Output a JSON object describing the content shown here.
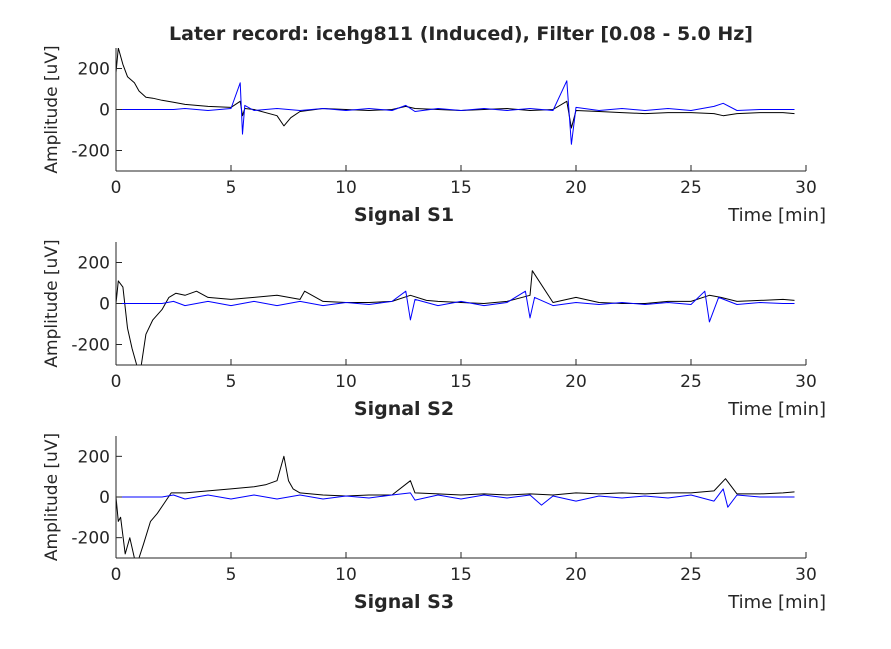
{
  "figure": {
    "title": "Later record: icehg811 (Induced), Filter [0.08 - 5.0 Hz]"
  },
  "colors": {
    "raw_signal": "#000000",
    "filtered_signal": "#0000ff",
    "axes": "#262626"
  },
  "chart_data": [
    {
      "type": "line",
      "subplot": "S1",
      "xlabel": "Signal S1",
      "xunit_label": "Time [min]",
      "ylabel": "Amplitude [uV]",
      "xlim": [
        0,
        30
      ],
      "ylim": [
        -300,
        300
      ],
      "xticks": [
        0,
        5,
        10,
        15,
        20,
        25,
        30
      ],
      "yticks": [
        -200,
        0,
        200
      ],
      "grid": false,
      "series": [
        {
          "color": "#000000",
          "x": [
            0,
            0.1,
            0.3,
            0.5,
            0.8,
            1.0,
            1.3,
            1.6,
            2.0,
            2.5,
            3.0,
            4.0,
            5.0,
            5.4,
            5.5,
            5.6,
            6.0,
            7.0,
            7.3,
            7.6,
            8.0,
            9.0,
            10.0,
            11.0,
            12.0,
            12.6,
            13.0,
            14.0,
            15.0,
            16.0,
            17.0,
            18.0,
            19.0,
            19.6,
            19.8,
            20.0,
            21.0,
            22.0,
            23.0,
            24.0,
            25.0,
            26.0,
            26.4,
            27.0,
            28.0,
            29.0,
            29.5
          ],
          "y": [
            180,
            300,
            220,
            160,
            130,
            90,
            60,
            55,
            45,
            35,
            25,
            15,
            10,
            40,
            -30,
            5,
            0,
            -30,
            -80,
            -40,
            -10,
            5,
            0,
            -5,
            0,
            15,
            5,
            0,
            -5,
            0,
            5,
            -5,
            0,
            40,
            -90,
            -5,
            -10,
            -15,
            -20,
            -15,
            -15,
            -20,
            -30,
            -20,
            -15,
            -15,
            -20
          ]
        },
        {
          "color": "#0000ff",
          "x": [
            0,
            2.5,
            3.0,
            4.0,
            5.0,
            5.4,
            5.5,
            5.6,
            6.0,
            7.0,
            8.0,
            9.0,
            10.0,
            11.0,
            12.0,
            12.6,
            13.0,
            14.0,
            15.0,
            16.0,
            17.0,
            18.0,
            19.0,
            19.6,
            19.8,
            20.0,
            21.0,
            22.0,
            23.0,
            24.0,
            25.0,
            26.0,
            26.4,
            27.0,
            28.0,
            29.0,
            29.5
          ],
          "y": [
            0,
            0,
            5,
            -5,
            5,
            130,
            -120,
            20,
            -5,
            5,
            -5,
            5,
            -5,
            5,
            -5,
            20,
            -10,
            5,
            -5,
            5,
            -5,
            5,
            -5,
            140,
            -170,
            10,
            -5,
            5,
            -5,
            5,
            -5,
            15,
            30,
            -5,
            0,
            0,
            0
          ]
        }
      ]
    },
    {
      "type": "line",
      "subplot": "S2",
      "xlabel": "Signal S2",
      "xunit_label": "Time [min]",
      "ylabel": "Amplitude [uV]",
      "xlim": [
        0,
        30
      ],
      "ylim": [
        -300,
        300
      ],
      "xticks": [
        0,
        5,
        10,
        15,
        20,
        25,
        30
      ],
      "yticks": [
        -200,
        0,
        200
      ],
      "grid": false,
      "series": [
        {
          "color": "#000000",
          "x": [
            0,
            0.1,
            0.3,
            0.5,
            0.7,
            0.9,
            1.1,
            1.3,
            1.6,
            2.0,
            2.3,
            2.6,
            3.0,
            3.5,
            4.0,
            5.0,
            6.0,
            7.0,
            8.0,
            8.2,
            9.0,
            10.0,
            11.0,
            12.0,
            12.8,
            13.5,
            14.0,
            15.0,
            16.0,
            17.0,
            18.0,
            18.1,
            19.0,
            20.0,
            21.0,
            22.0,
            23.0,
            24.0,
            25.0,
            25.8,
            26.3,
            27.0,
            28.0,
            29.0,
            29.5
          ],
          "y": [
            0,
            110,
            80,
            -120,
            -220,
            -300,
            -300,
            -150,
            -80,
            -30,
            30,
            50,
            40,
            60,
            30,
            20,
            30,
            40,
            20,
            60,
            10,
            5,
            5,
            10,
            40,
            15,
            10,
            5,
            0,
            10,
            40,
            160,
            5,
            30,
            5,
            0,
            0,
            10,
            10,
            40,
            30,
            10,
            15,
            20,
            15
          ]
        },
        {
          "color": "#0000ff",
          "x": [
            0,
            2.0,
            2.5,
            3.0,
            4.0,
            5.0,
            6.0,
            7.0,
            8.0,
            9.0,
            10.0,
            11.0,
            12.0,
            12.6,
            12.8,
            13.0,
            14.0,
            15.0,
            16.0,
            17.0,
            17.8,
            18.0,
            18.2,
            19.0,
            20.0,
            21.0,
            22.0,
            23.0,
            24.0,
            25.0,
            25.6,
            25.8,
            26.2,
            27.0,
            28.0,
            29.0,
            29.5
          ],
          "y": [
            0,
            0,
            10,
            -10,
            10,
            -10,
            10,
            -10,
            10,
            -10,
            5,
            -5,
            10,
            60,
            -80,
            20,
            -10,
            10,
            -10,
            5,
            60,
            -70,
            30,
            -10,
            5,
            -5,
            5,
            -5,
            5,
            -5,
            60,
            -90,
            30,
            -5,
            5,
            0,
            0
          ]
        }
      ]
    },
    {
      "type": "line",
      "subplot": "S3",
      "xlabel": "Signal S3",
      "xunit_label": "Time [min]",
      "ylabel": "Amplitude [uV]",
      "xlim": [
        0,
        30
      ],
      "ylim": [
        -300,
        300
      ],
      "xticks": [
        0,
        5,
        10,
        15,
        20,
        25,
        30
      ],
      "yticks": [
        -200,
        0,
        200
      ],
      "grid": false,
      "series": [
        {
          "color": "#000000",
          "x": [
            0,
            0.1,
            0.2,
            0.4,
            0.6,
            0.8,
            1.0,
            1.2,
            1.5,
            1.8,
            2.1,
            2.4,
            3.0,
            4.0,
            5.0,
            6.0,
            6.5,
            7.0,
            7.3,
            7.5,
            7.7,
            8.0,
            9.0,
            10.0,
            11.0,
            12.0,
            12.8,
            13.0,
            14.0,
            15.0,
            16.0,
            17.0,
            18.0,
            19.0,
            20.0,
            21.0,
            22.0,
            23.0,
            24.0,
            25.0,
            26.0,
            26.5,
            27.0,
            28.0,
            29.0,
            29.5
          ],
          "y": [
            0,
            -120,
            -100,
            -280,
            -200,
            -300,
            -300,
            -230,
            -120,
            -80,
            -30,
            20,
            20,
            30,
            40,
            50,
            60,
            80,
            200,
            80,
            40,
            20,
            10,
            5,
            10,
            10,
            80,
            20,
            15,
            10,
            15,
            10,
            15,
            10,
            20,
            15,
            20,
            15,
            20,
            20,
            30,
            90,
            15,
            15,
            20,
            25
          ]
        },
        {
          "color": "#0000ff",
          "x": [
            0,
            2.0,
            2.5,
            3.0,
            4.0,
            5.0,
            6.0,
            7.0,
            8.0,
            9.0,
            10.0,
            11.0,
            12.0,
            12.8,
            13.0,
            14.0,
            15.0,
            16.0,
            17.0,
            18.0,
            18.5,
            19.0,
            20.0,
            21.0,
            22.0,
            23.0,
            24.0,
            25.0,
            26.0,
            26.4,
            26.6,
            27.0,
            28.0,
            29.0,
            29.5
          ],
          "y": [
            0,
            0,
            10,
            -10,
            10,
            -10,
            10,
            -10,
            10,
            -10,
            5,
            -5,
            10,
            20,
            -15,
            10,
            -10,
            10,
            -5,
            10,
            -40,
            5,
            -20,
            5,
            -5,
            5,
            -5,
            10,
            -20,
            40,
            -50,
            10,
            0,
            0,
            0
          ]
        }
      ]
    }
  ]
}
